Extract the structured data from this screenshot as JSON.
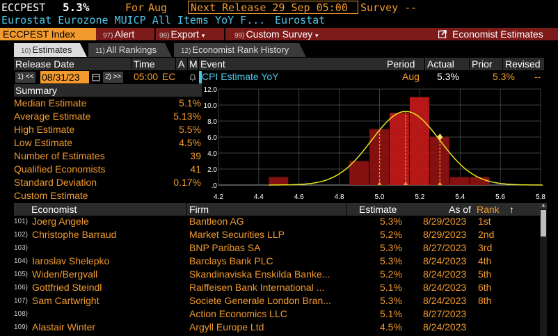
{
  "top": {
    "ticker": "ECCPEST",
    "value": "5.3%",
    "for_label": "For",
    "for_value": "Aug",
    "next_release": "Next Release 29 Sep 05:00",
    "survey": "Survey --",
    "description": "Eurostat Eurozone MUICP All Items YoY F...",
    "source": "Eurostat"
  },
  "redbar": {
    "security": "ECCPEST Index",
    "alert_num": "97)",
    "alert": "Alert",
    "export_num": "98)",
    "export": "Export",
    "custom_num": "99)",
    "custom_survey": "Custom Survey",
    "economist_estimates": "Economist Estimates"
  },
  "tabs": [
    {
      "num": "10)",
      "label": "Estimates"
    },
    {
      "num": "11)",
      "label": "All Rankings"
    },
    {
      "num": "12)",
      "label": "Economist Rank History"
    }
  ],
  "release_header": {
    "release_date": "Release Date",
    "time": "Time",
    "a": "A",
    "m": "M",
    "event": "Event",
    "period": "Period",
    "actual": "Actual",
    "prior": "Prior",
    "revised": "Revised"
  },
  "release_row": {
    "prev_num": "1)",
    "prev": "<<",
    "date": "08/31/23",
    "next_num": "2)",
    "next": ">>",
    "time": "05:00",
    "country": "EC",
    "event": "CPI Estimate YoY",
    "period": "Aug",
    "actual": "5.3%",
    "prior": "5.3%",
    "revised": "--"
  },
  "summary": {
    "title": "Summary",
    "items": [
      {
        "label": "Median Estimate",
        "value": "5.1%"
      },
      {
        "label": "Average Estimate",
        "value": "5.13%"
      },
      {
        "label": "High Estimate",
        "value": "5.5%"
      },
      {
        "label": "Low Estimate",
        "value": "4.5%"
      },
      {
        "label": "Number of Estimates",
        "value": "39"
      },
      {
        "label": "Qualified Economists",
        "value": "41"
      },
      {
        "label": "Standard Deviation",
        "value": "0.17%"
      },
      {
        "label": "Custom Estimate",
        "value": ""
      }
    ]
  },
  "chart_data": {
    "type": "bar",
    "x_ticks": [
      "4.2",
      "4.4",
      "4.6",
      "4.8",
      "5.0",
      "5.2",
      "5.4",
      "5.6",
      "5.8"
    ],
    "y_ticks": [
      "12.0",
      "10.0",
      "8.0",
      "6.0",
      "4.0",
      "2.0",
      ".0"
    ],
    "xlim": [
      4.2,
      5.8
    ],
    "ylim": [
      0,
      12
    ],
    "bin_width": 0.1,
    "bins": [
      {
        "x": 4.5,
        "count": 1
      },
      {
        "x": 4.9,
        "count": 3
      },
      {
        "x": 5.0,
        "count": 7
      },
      {
        "x": 5.1,
        "count": 9
      },
      {
        "x": 5.2,
        "count": 11
      },
      {
        "x": 5.3,
        "count": 6
      },
      {
        "x": 5.4,
        "count": 1
      },
      {
        "x": 5.5,
        "count": 1
      }
    ],
    "curve": {
      "mean": 5.13,
      "sd": 0.17,
      "peak": 9.2
    },
    "markers": [
      5.0,
      5.13,
      5.3
    ],
    "diamond": {
      "x": 5.3,
      "y": 6.0
    },
    "colors": {
      "bar": "#8b1111",
      "bar_hi": "#c01818",
      "curve": "#e8e820",
      "marker": "#f29a2e",
      "grid": "#555555"
    },
    "grid": true
  },
  "table": {
    "headers": {
      "economist": "Economist",
      "firm": "Firm",
      "estimate": "Estimate",
      "as_of": "As of",
      "rank": "Rank"
    },
    "sort_icon": "up-arrow",
    "rows": [
      {
        "num": "101)",
        "economist": "Joerg Angele",
        "firm": "Bantleon AG",
        "estimate": "5.3%",
        "as_of": "8/29/2023",
        "rank": "1st"
      },
      {
        "num": "102)",
        "economist": "Christophe Barraud",
        "firm": "Market Securities LLP",
        "estimate": "5.2%",
        "as_of": "8/29/2023",
        "rank": "2nd"
      },
      {
        "num": "103)",
        "economist": "",
        "firm": "BNP Paribas SA",
        "estimate": "5.3%",
        "as_of": "8/27/2023",
        "rank": "3rd"
      },
      {
        "num": "104)",
        "economist": "Iaroslav Shelepko",
        "firm": "Barclays Bank PLC",
        "estimate": "5.3%",
        "as_of": "8/24/2023",
        "rank": "4th"
      },
      {
        "num": "105)",
        "economist": "Widen/Bergvall",
        "firm": "Skandinaviska Enskilda Banke...",
        "estimate": "5.2%",
        "as_of": "8/24/2023",
        "rank": "5th"
      },
      {
        "num": "106)",
        "economist": "Gottfried Steindl",
        "firm": "Raiffeisen Bank International ...",
        "estimate": "5.1%",
        "as_of": "8/24/2023",
        "rank": "6th"
      },
      {
        "num": "107)",
        "economist": "Sam Cartwright",
        "firm": "Societe Generale London Bran...",
        "estimate": "5.3%",
        "as_of": "8/24/2023",
        "rank": "8th"
      },
      {
        "num": "108)",
        "economist": "",
        "firm": "Action Economics LLC",
        "estimate": "5.1%",
        "as_of": "8/27/2023",
        "rank": ""
      },
      {
        "num": "109)",
        "economist": "Alastair Winter",
        "firm": "Argyll Europe Ltd",
        "estimate": "4.5%",
        "as_of": "8/24/2023",
        "rank": ""
      }
    ]
  }
}
